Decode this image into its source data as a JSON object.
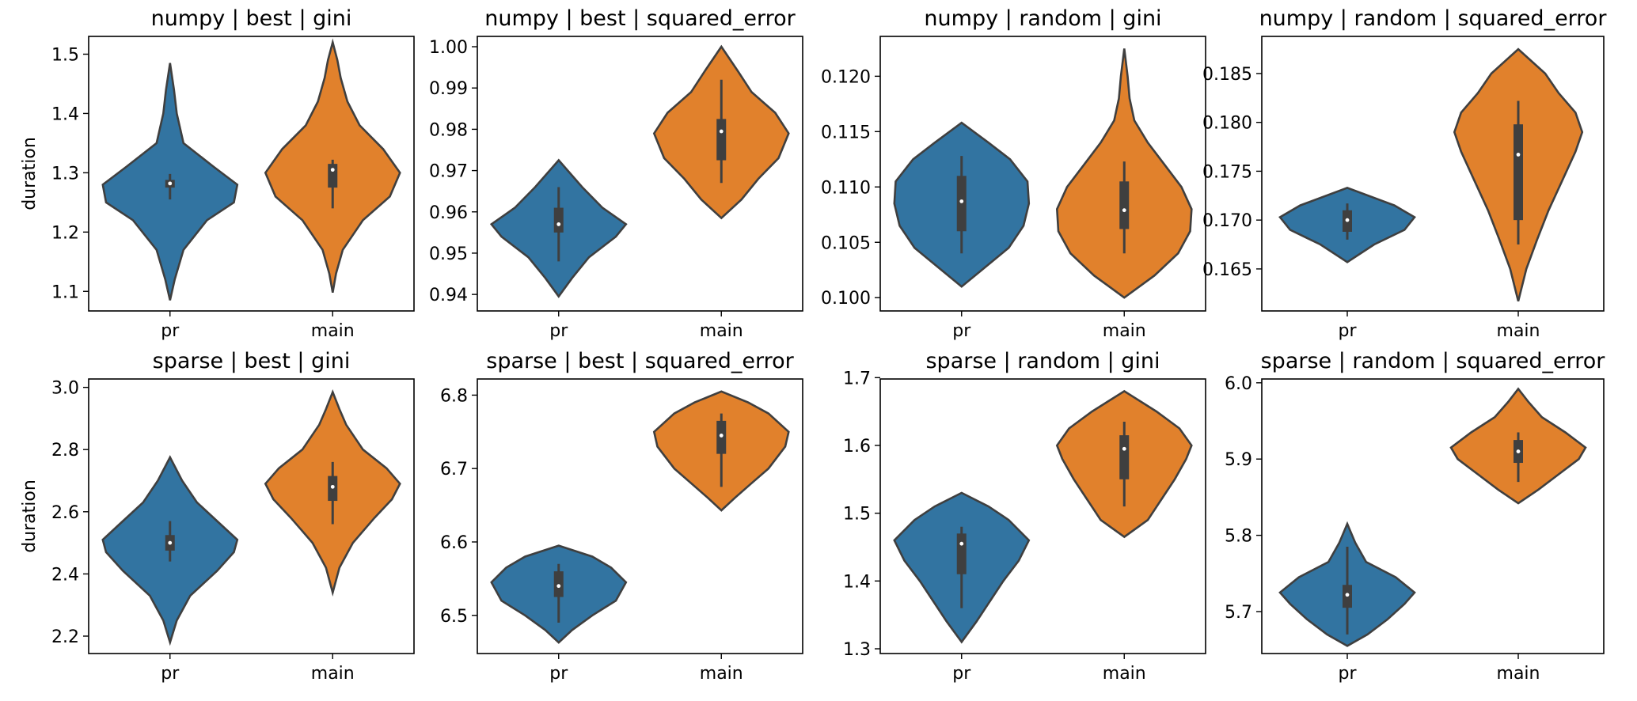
{
  "chart_data": [
    {
      "type": "violin",
      "title": "numpy | best | gini",
      "ylabel": "duration",
      "categories": [
        "pr",
        "main"
      ],
      "ylim": [
        1.067,
        1.53
      ],
      "yticks": [
        "1.1",
        "1.2",
        "1.3",
        "1.4",
        "1.5"
      ],
      "colors": [
        "#3274a1",
        "#e1812c"
      ],
      "series": [
        {
          "name": "pr",
          "min": 1.085,
          "max": 1.485,
          "whisker_low": 1.255,
          "whisker_high": 1.298,
          "q1": 1.275,
          "q3": 1.288,
          "median": 1.282,
          "profile": [
            [
              1.085,
              0.0
            ],
            [
              1.12,
              0.07
            ],
            [
              1.17,
              0.2
            ],
            [
              1.22,
              0.55
            ],
            [
              1.25,
              0.95
            ],
            [
              1.28,
              1.0
            ],
            [
              1.31,
              0.65
            ],
            [
              1.35,
              0.2
            ],
            [
              1.4,
              0.1
            ],
            [
              1.44,
              0.06
            ],
            [
              1.485,
              0.0
            ]
          ]
        },
        {
          "name": "main",
          "min": 1.098,
          "max": 1.52,
          "whisker_low": 1.24,
          "whisker_high": 1.322,
          "q1": 1.275,
          "q3": 1.315,
          "median": 1.305,
          "profile": [
            [
              1.098,
              0.0
            ],
            [
              1.13,
              0.05
            ],
            [
              1.17,
              0.15
            ],
            [
              1.22,
              0.45
            ],
            [
              1.26,
              0.85
            ],
            [
              1.3,
              1.0
            ],
            [
              1.34,
              0.75
            ],
            [
              1.38,
              0.4
            ],
            [
              1.42,
              0.22
            ],
            [
              1.46,
              0.12
            ],
            [
              1.49,
              0.07
            ],
            [
              1.52,
              0.0
            ]
          ]
        }
      ]
    },
    {
      "type": "violin",
      "title": "numpy | best | squared_error",
      "ylabel": "",
      "categories": [
        "pr",
        "main"
      ],
      "ylim": [
        0.936,
        1.0025
      ],
      "yticks": [
        "0.94",
        "0.95",
        "0.96",
        "0.97",
        "0.98",
        "0.99",
        "1.00"
      ],
      "colors": [
        "#3274a1",
        "#e1812c"
      ],
      "series": [
        {
          "name": "pr",
          "min": 0.9395,
          "max": 0.9725,
          "whisker_low": 0.948,
          "whisker_high": 0.966,
          "q1": 0.955,
          "q3": 0.961,
          "median": 0.957,
          "profile": [
            [
              0.9395,
              0.0
            ],
            [
              0.944,
              0.2
            ],
            [
              0.949,
              0.45
            ],
            [
              0.954,
              0.85
            ],
            [
              0.957,
              1.0
            ],
            [
              0.961,
              0.65
            ],
            [
              0.966,
              0.35
            ],
            [
              0.9725,
              0.0
            ]
          ]
        },
        {
          "name": "main",
          "min": 0.9585,
          "max": 1.0,
          "whisker_low": 0.967,
          "whisker_high": 0.992,
          "q1": 0.9725,
          "q3": 0.9825,
          "median": 0.9795,
          "profile": [
            [
              0.9585,
              0.0
            ],
            [
              0.963,
              0.3
            ],
            [
              0.968,
              0.55
            ],
            [
              0.973,
              0.85
            ],
            [
              0.979,
              1.0
            ],
            [
              0.984,
              0.8
            ],
            [
              0.989,
              0.45
            ],
            [
              0.994,
              0.25
            ],
            [
              1.0,
              0.0
            ]
          ]
        }
      ]
    },
    {
      "type": "violin",
      "title": "numpy | random | gini",
      "ylabel": "",
      "categories": [
        "pr",
        "main"
      ],
      "ylim": [
        0.0988,
        0.1236
      ],
      "yticks": [
        "0.100",
        "0.105",
        "0.110",
        "0.115",
        "0.120"
      ],
      "colors": [
        "#3274a1",
        "#e1812c"
      ],
      "series": [
        {
          "name": "pr",
          "min": 0.101,
          "max": 0.1158,
          "whisker_low": 0.104,
          "whisker_high": 0.1128,
          "q1": 0.106,
          "q3": 0.111,
          "median": 0.1087,
          "profile": [
            [
              0.101,
              0.0
            ],
            [
              0.1025,
              0.3
            ],
            [
              0.1045,
              0.7
            ],
            [
              0.1065,
              0.92
            ],
            [
              0.1085,
              1.0
            ],
            [
              0.1105,
              0.98
            ],
            [
              0.1125,
              0.72
            ],
            [
              0.114,
              0.4
            ],
            [
              0.1158,
              0.0
            ]
          ]
        },
        {
          "name": "main",
          "min": 0.1,
          "max": 0.1225,
          "whisker_low": 0.104,
          "whisker_high": 0.1123,
          "q1": 0.1062,
          "q3": 0.1105,
          "median": 0.1079,
          "profile": [
            [
              0.1,
              0.0
            ],
            [
              0.102,
              0.45
            ],
            [
              0.104,
              0.8
            ],
            [
              0.106,
              0.98
            ],
            [
              0.108,
              1.0
            ],
            [
              0.11,
              0.85
            ],
            [
              0.112,
              0.6
            ],
            [
              0.114,
              0.35
            ],
            [
              0.116,
              0.15
            ],
            [
              0.118,
              0.08
            ],
            [
              0.12,
              0.05
            ],
            [
              0.1225,
              0.0
            ]
          ]
        }
      ]
    },
    {
      "type": "violin",
      "title": "numpy | random | squared_error",
      "ylabel": "",
      "categories": [
        "pr",
        "main"
      ],
      "ylim": [
        0.1607,
        0.1888
      ],
      "yticks": [
        "0.165",
        "0.170",
        "0.175",
        "0.180",
        "0.185"
      ],
      "colors": [
        "#3274a1",
        "#e1812c"
      ],
      "series": [
        {
          "name": "pr",
          "min": 0.1657,
          "max": 0.1733,
          "whisker_low": 0.168,
          "whisker_high": 0.1717,
          "q1": 0.1688,
          "q3": 0.171,
          "median": 0.17,
          "profile": [
            [
              0.1657,
              0.0
            ],
            [
              0.1675,
              0.4
            ],
            [
              0.169,
              0.85
            ],
            [
              0.1703,
              1.0
            ],
            [
              0.1715,
              0.7
            ],
            [
              0.1733,
              0.0
            ]
          ]
        },
        {
          "name": "main",
          "min": 0.1617,
          "max": 0.1875,
          "whisker_low": 0.1675,
          "whisker_high": 0.1822,
          "q1": 0.17,
          "q3": 0.1798,
          "median": 0.1767,
          "profile": [
            [
              0.1617,
              0.0
            ],
            [
              0.165,
              0.12
            ],
            [
              0.168,
              0.28
            ],
            [
              0.171,
              0.45
            ],
            [
              0.174,
              0.65
            ],
            [
              0.177,
              0.85
            ],
            [
              0.179,
              0.95
            ],
            [
              0.181,
              0.85
            ],
            [
              0.183,
              0.6
            ],
            [
              0.185,
              0.4
            ],
            [
              0.1875,
              0.0
            ]
          ]
        }
      ]
    },
    {
      "type": "violin",
      "title": "sparse | best | gini",
      "ylabel": "duration",
      "categories": [
        "pr",
        "main"
      ],
      "ylim": [
        2.144,
        3.027
      ],
      "yticks": [
        "2.2",
        "2.4",
        "2.6",
        "2.8",
        "3.0"
      ],
      "colors": [
        "#3274a1",
        "#e1812c"
      ],
      "series": [
        {
          "name": "pr",
          "min": 2.18,
          "max": 2.775,
          "whisker_low": 2.44,
          "whisker_high": 2.57,
          "q1": 2.475,
          "q3": 2.525,
          "median": 2.5,
          "profile": [
            [
              2.18,
              0.0
            ],
            [
              2.25,
              0.1
            ],
            [
              2.33,
              0.3
            ],
            [
              2.41,
              0.7
            ],
            [
              2.47,
              0.95
            ],
            [
              2.51,
              1.0
            ],
            [
              2.56,
              0.75
            ],
            [
              2.63,
              0.4
            ],
            [
              2.7,
              0.18
            ],
            [
              2.775,
              0.0
            ]
          ]
        },
        {
          "name": "main",
          "min": 2.34,
          "max": 2.985,
          "whisker_low": 2.56,
          "whisker_high": 2.76,
          "q1": 2.635,
          "q3": 2.715,
          "median": 2.68,
          "profile": [
            [
              2.34,
              0.0
            ],
            [
              2.42,
              0.1
            ],
            [
              2.5,
              0.3
            ],
            [
              2.58,
              0.62
            ],
            [
              2.64,
              0.88
            ],
            [
              2.69,
              1.0
            ],
            [
              2.74,
              0.8
            ],
            [
              2.8,
              0.45
            ],
            [
              2.88,
              0.2
            ],
            [
              2.93,
              0.1
            ],
            [
              2.985,
              0.0
            ]
          ]
        }
      ]
    },
    {
      "type": "violin",
      "title": "sparse | best | squared_error",
      "ylabel": "",
      "categories": [
        "pr",
        "main"
      ],
      "ylim": [
        6.448,
        6.822
      ],
      "yticks": [
        "6.5",
        "6.6",
        "6.7",
        "6.8"
      ],
      "colors": [
        "#3274a1",
        "#e1812c"
      ],
      "series": [
        {
          "name": "pr",
          "min": 6.463,
          "max": 6.595,
          "whisker_low": 6.49,
          "whisker_high": 6.57,
          "q1": 6.525,
          "q3": 6.56,
          "median": 6.54,
          "profile": [
            [
              6.463,
              0.0
            ],
            [
              6.48,
              0.2
            ],
            [
              6.5,
              0.5
            ],
            [
              6.52,
              0.85
            ],
            [
              6.545,
              1.0
            ],
            [
              6.565,
              0.78
            ],
            [
              6.58,
              0.5
            ],
            [
              6.595,
              0.0
            ]
          ]
        },
        {
          "name": "main",
          "min": 6.643,
          "max": 6.805,
          "whisker_low": 6.675,
          "whisker_high": 6.775,
          "q1": 6.72,
          "q3": 6.765,
          "median": 6.745,
          "profile": [
            [
              6.643,
              0.0
            ],
            [
              6.66,
              0.2
            ],
            [
              6.68,
              0.45
            ],
            [
              6.7,
              0.7
            ],
            [
              6.73,
              0.95
            ],
            [
              6.75,
              1.0
            ],
            [
              6.775,
              0.7
            ],
            [
              6.79,
              0.4
            ],
            [
              6.805,
              0.0
            ]
          ]
        }
      ]
    },
    {
      "type": "violin",
      "title": "sparse | random | gini",
      "ylabel": "",
      "categories": [
        "pr",
        "main"
      ],
      "ylim": [
        1.293,
        1.698
      ],
      "yticks": [
        "1.3",
        "1.4",
        "1.5",
        "1.6",
        "1.7"
      ],
      "colors": [
        "#3274a1",
        "#e1812c"
      ],
      "series": [
        {
          "name": "pr",
          "min": 1.31,
          "max": 1.53,
          "whisker_low": 1.36,
          "whisker_high": 1.48,
          "q1": 1.41,
          "q3": 1.47,
          "median": 1.455,
          "profile": [
            [
              1.31,
              0.0
            ],
            [
              1.34,
              0.22
            ],
            [
              1.37,
              0.42
            ],
            [
              1.4,
              0.62
            ],
            [
              1.43,
              0.85
            ],
            [
              1.46,
              1.0
            ],
            [
              1.49,
              0.7
            ],
            [
              1.51,
              0.4
            ],
            [
              1.53,
              0.0
            ]
          ]
        },
        {
          "name": "main",
          "min": 1.465,
          "max": 1.68,
          "whisker_low": 1.51,
          "whisker_high": 1.635,
          "q1": 1.55,
          "q3": 1.615,
          "median": 1.595,
          "profile": [
            [
              1.465,
              0.0
            ],
            [
              1.49,
              0.35
            ],
            [
              1.52,
              0.55
            ],
            [
              1.55,
              0.75
            ],
            [
              1.58,
              0.92
            ],
            [
              1.6,
              1.0
            ],
            [
              1.625,
              0.82
            ],
            [
              1.65,
              0.48
            ],
            [
              1.68,
              0.0
            ]
          ]
        }
      ]
    },
    {
      "type": "violin",
      "title": "sparse | random | squared_error",
      "ylabel": "",
      "categories": [
        "pr",
        "main"
      ],
      "ylim": [
        5.645,
        6.005
      ],
      "yticks": [
        "5.7",
        "5.8",
        "5.9",
        "6.0"
      ],
      "colors": [
        "#3274a1",
        "#e1812c"
      ],
      "series": [
        {
          "name": "pr",
          "min": 5.655,
          "max": 5.815,
          "whisker_low": 5.67,
          "whisker_high": 5.785,
          "q1": 5.705,
          "q3": 5.735,
          "median": 5.722,
          "profile": [
            [
              5.655,
              0.0
            ],
            [
              5.67,
              0.3
            ],
            [
              5.69,
              0.6
            ],
            [
              5.71,
              0.85
            ],
            [
              5.725,
              1.0
            ],
            [
              5.745,
              0.72
            ],
            [
              5.765,
              0.28
            ],
            [
              5.79,
              0.12
            ],
            [
              5.815,
              0.0
            ]
          ]
        },
        {
          "name": "main",
          "min": 5.842,
          "max": 5.992,
          "whisker_low": 5.87,
          "whisker_high": 5.935,
          "q1": 5.895,
          "q3": 5.925,
          "median": 5.91,
          "profile": [
            [
              5.842,
              0.0
            ],
            [
              5.86,
              0.3
            ],
            [
              5.88,
              0.6
            ],
            [
              5.9,
              0.9
            ],
            [
              5.915,
              1.0
            ],
            [
              5.935,
              0.7
            ],
            [
              5.955,
              0.35
            ],
            [
              5.975,
              0.15
            ],
            [
              5.992,
              0.0
            ]
          ]
        }
      ]
    }
  ]
}
